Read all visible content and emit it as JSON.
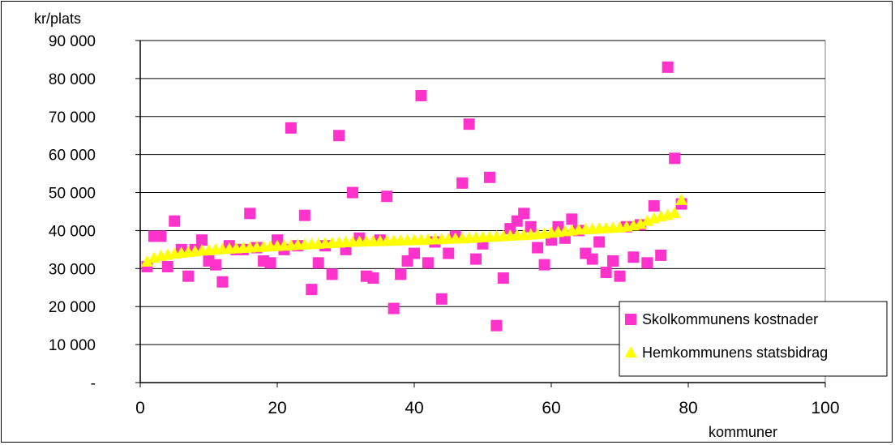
{
  "chart_data": {
    "type": "scatter",
    "title": "",
    "ylabel": "kr/plats",
    "xlabel": "kommuner",
    "xlim": [
      0,
      100
    ],
    "ylim": [
      0,
      90000
    ],
    "x_ticks": [
      0,
      20,
      40,
      60,
      80,
      100
    ],
    "x_tick_labels": [
      "0",
      "20",
      "40",
      "60",
      "80",
      "100"
    ],
    "y_ticks": [
      0,
      10000,
      20000,
      30000,
      40000,
      50000,
      60000,
      70000,
      80000,
      90000
    ],
    "y_tick_labels": [
      "-",
      "10 000",
      "20 000",
      "30 000",
      "40 000",
      "50 000",
      "60 000",
      "70 000",
      "80 000",
      "90 000"
    ],
    "grid": "horizontal",
    "legend_position": "bottom-right",
    "series": [
      {
        "name": "Skolkommunens kostnader",
        "marker": "square",
        "color": "#FF33CC",
        "points": [
          [
            1,
            30500
          ],
          [
            2,
            38500
          ],
          [
            3,
            38500
          ],
          [
            4,
            30500
          ],
          [
            5,
            42500
          ],
          [
            6,
            35000
          ],
          [
            7,
            28000
          ],
          [
            8,
            35000
          ],
          [
            9,
            37500
          ],
          [
            10,
            32000
          ],
          [
            11,
            31000
          ],
          [
            12,
            26500
          ],
          [
            13,
            36000
          ],
          [
            14,
            35000
          ],
          [
            15,
            35000
          ],
          [
            16,
            44500
          ],
          [
            17,
            35500
          ],
          [
            18,
            32000
          ],
          [
            19,
            31500
          ],
          [
            20,
            37500
          ],
          [
            21,
            35000
          ],
          [
            22,
            67000
          ],
          [
            23,
            36000
          ],
          [
            24,
            44000
          ],
          [
            25,
            24500
          ],
          [
            26,
            31500
          ],
          [
            27,
            36000
          ],
          [
            28,
            28500
          ],
          [
            29,
            65000
          ],
          [
            30,
            35000
          ],
          [
            31,
            50000
          ],
          [
            32,
            38000
          ],
          [
            33,
            28000
          ],
          [
            34,
            27500
          ],
          [
            35,
            37500
          ],
          [
            36,
            49000
          ],
          [
            37,
            19500
          ],
          [
            38,
            28500
          ],
          [
            39,
            32000
          ],
          [
            40,
            34000
          ],
          [
            41,
            75500
          ],
          [
            42,
            31500
          ],
          [
            43,
            37000
          ],
          [
            44,
            22000
          ],
          [
            45,
            34000
          ],
          [
            46,
            38500
          ],
          [
            47,
            52500
          ],
          [
            48,
            68000
          ],
          [
            49,
            32500
          ],
          [
            50,
            36500
          ],
          [
            51,
            54000
          ],
          [
            52,
            15000
          ],
          [
            53,
            27500
          ],
          [
            54,
            40500
          ],
          [
            55,
            42500
          ],
          [
            56,
            44500
          ],
          [
            57,
            41000
          ],
          [
            58,
            35500
          ],
          [
            59,
            31000
          ],
          [
            60,
            37500
          ],
          [
            61,
            41000
          ],
          [
            62,
            38000
          ],
          [
            63,
            43000
          ],
          [
            64,
            40000
          ],
          [
            65,
            34000
          ],
          [
            66,
            32500
          ],
          [
            67,
            37000
          ],
          [
            68,
            29000
          ],
          [
            69,
            32000
          ],
          [
            70,
            28000
          ],
          [
            71,
            41000
          ],
          [
            72,
            33000
          ],
          [
            73,
            41500
          ],
          [
            74,
            31500
          ],
          [
            75,
            46500
          ],
          [
            76,
            33500
          ],
          [
            77,
            83000
          ],
          [
            78,
            59000
          ],
          [
            79,
            47000
          ]
        ]
      },
      {
        "name": "Hemkommunens statsbidrag",
        "marker": "triangle",
        "color": "#FFFF00",
        "points": [
          [
            1,
            31800
          ],
          [
            2,
            32800
          ],
          [
            3,
            33300
          ],
          [
            4,
            33600
          ],
          [
            5,
            33900
          ],
          [
            6,
            34100
          ],
          [
            7,
            34300
          ],
          [
            8,
            34500
          ],
          [
            9,
            34700
          ],
          [
            10,
            34800
          ],
          [
            11,
            35000
          ],
          [
            12,
            35100
          ],
          [
            13,
            35200
          ],
          [
            14,
            35300
          ],
          [
            15,
            35400
          ],
          [
            16,
            35500
          ],
          [
            17,
            35600
          ],
          [
            18,
            35700
          ],
          [
            19,
            35800
          ],
          [
            20,
            35900
          ],
          [
            21,
            36000
          ],
          [
            22,
            36100
          ],
          [
            23,
            36200
          ],
          [
            24,
            36300
          ],
          [
            25,
            36400
          ],
          [
            26,
            36500
          ],
          [
            27,
            36600
          ],
          [
            28,
            36700
          ],
          [
            29,
            36800
          ],
          [
            30,
            36900
          ],
          [
            31,
            37000
          ],
          [
            32,
            37050
          ],
          [
            33,
            37100
          ],
          [
            34,
            37150
          ],
          [
            35,
            37200
          ],
          [
            36,
            37250
          ],
          [
            37,
            37300
          ],
          [
            38,
            37350
          ],
          [
            39,
            37400
          ],
          [
            40,
            37450
          ],
          [
            41,
            37500
          ],
          [
            42,
            37600
          ],
          [
            43,
            37650
          ],
          [
            44,
            37700
          ],
          [
            45,
            37800
          ],
          [
            46,
            37850
          ],
          [
            47,
            37900
          ],
          [
            48,
            38000
          ],
          [
            49,
            38100
          ],
          [
            50,
            38200
          ],
          [
            51,
            38300
          ],
          [
            52,
            38400
          ],
          [
            53,
            38500
          ],
          [
            54,
            38600
          ],
          [
            55,
            38700
          ],
          [
            56,
            38800
          ],
          [
            57,
            38900
          ],
          [
            58,
            39000
          ],
          [
            59,
            39200
          ],
          [
            60,
            39400
          ],
          [
            61,
            39600
          ],
          [
            62,
            39800
          ],
          [
            63,
            40000
          ],
          [
            64,
            40200
          ],
          [
            65,
            40300
          ],
          [
            66,
            40400
          ],
          [
            67,
            40500
          ],
          [
            68,
            40600
          ],
          [
            69,
            40700
          ],
          [
            70,
            40800
          ],
          [
            71,
            41000
          ],
          [
            72,
            41300
          ],
          [
            73,
            41700
          ],
          [
            74,
            42500
          ],
          [
            75,
            43200
          ],
          [
            76,
            43700
          ],
          [
            77,
            44100
          ],
          [
            78,
            44600
          ],
          [
            79,
            48000
          ]
        ]
      }
    ]
  }
}
